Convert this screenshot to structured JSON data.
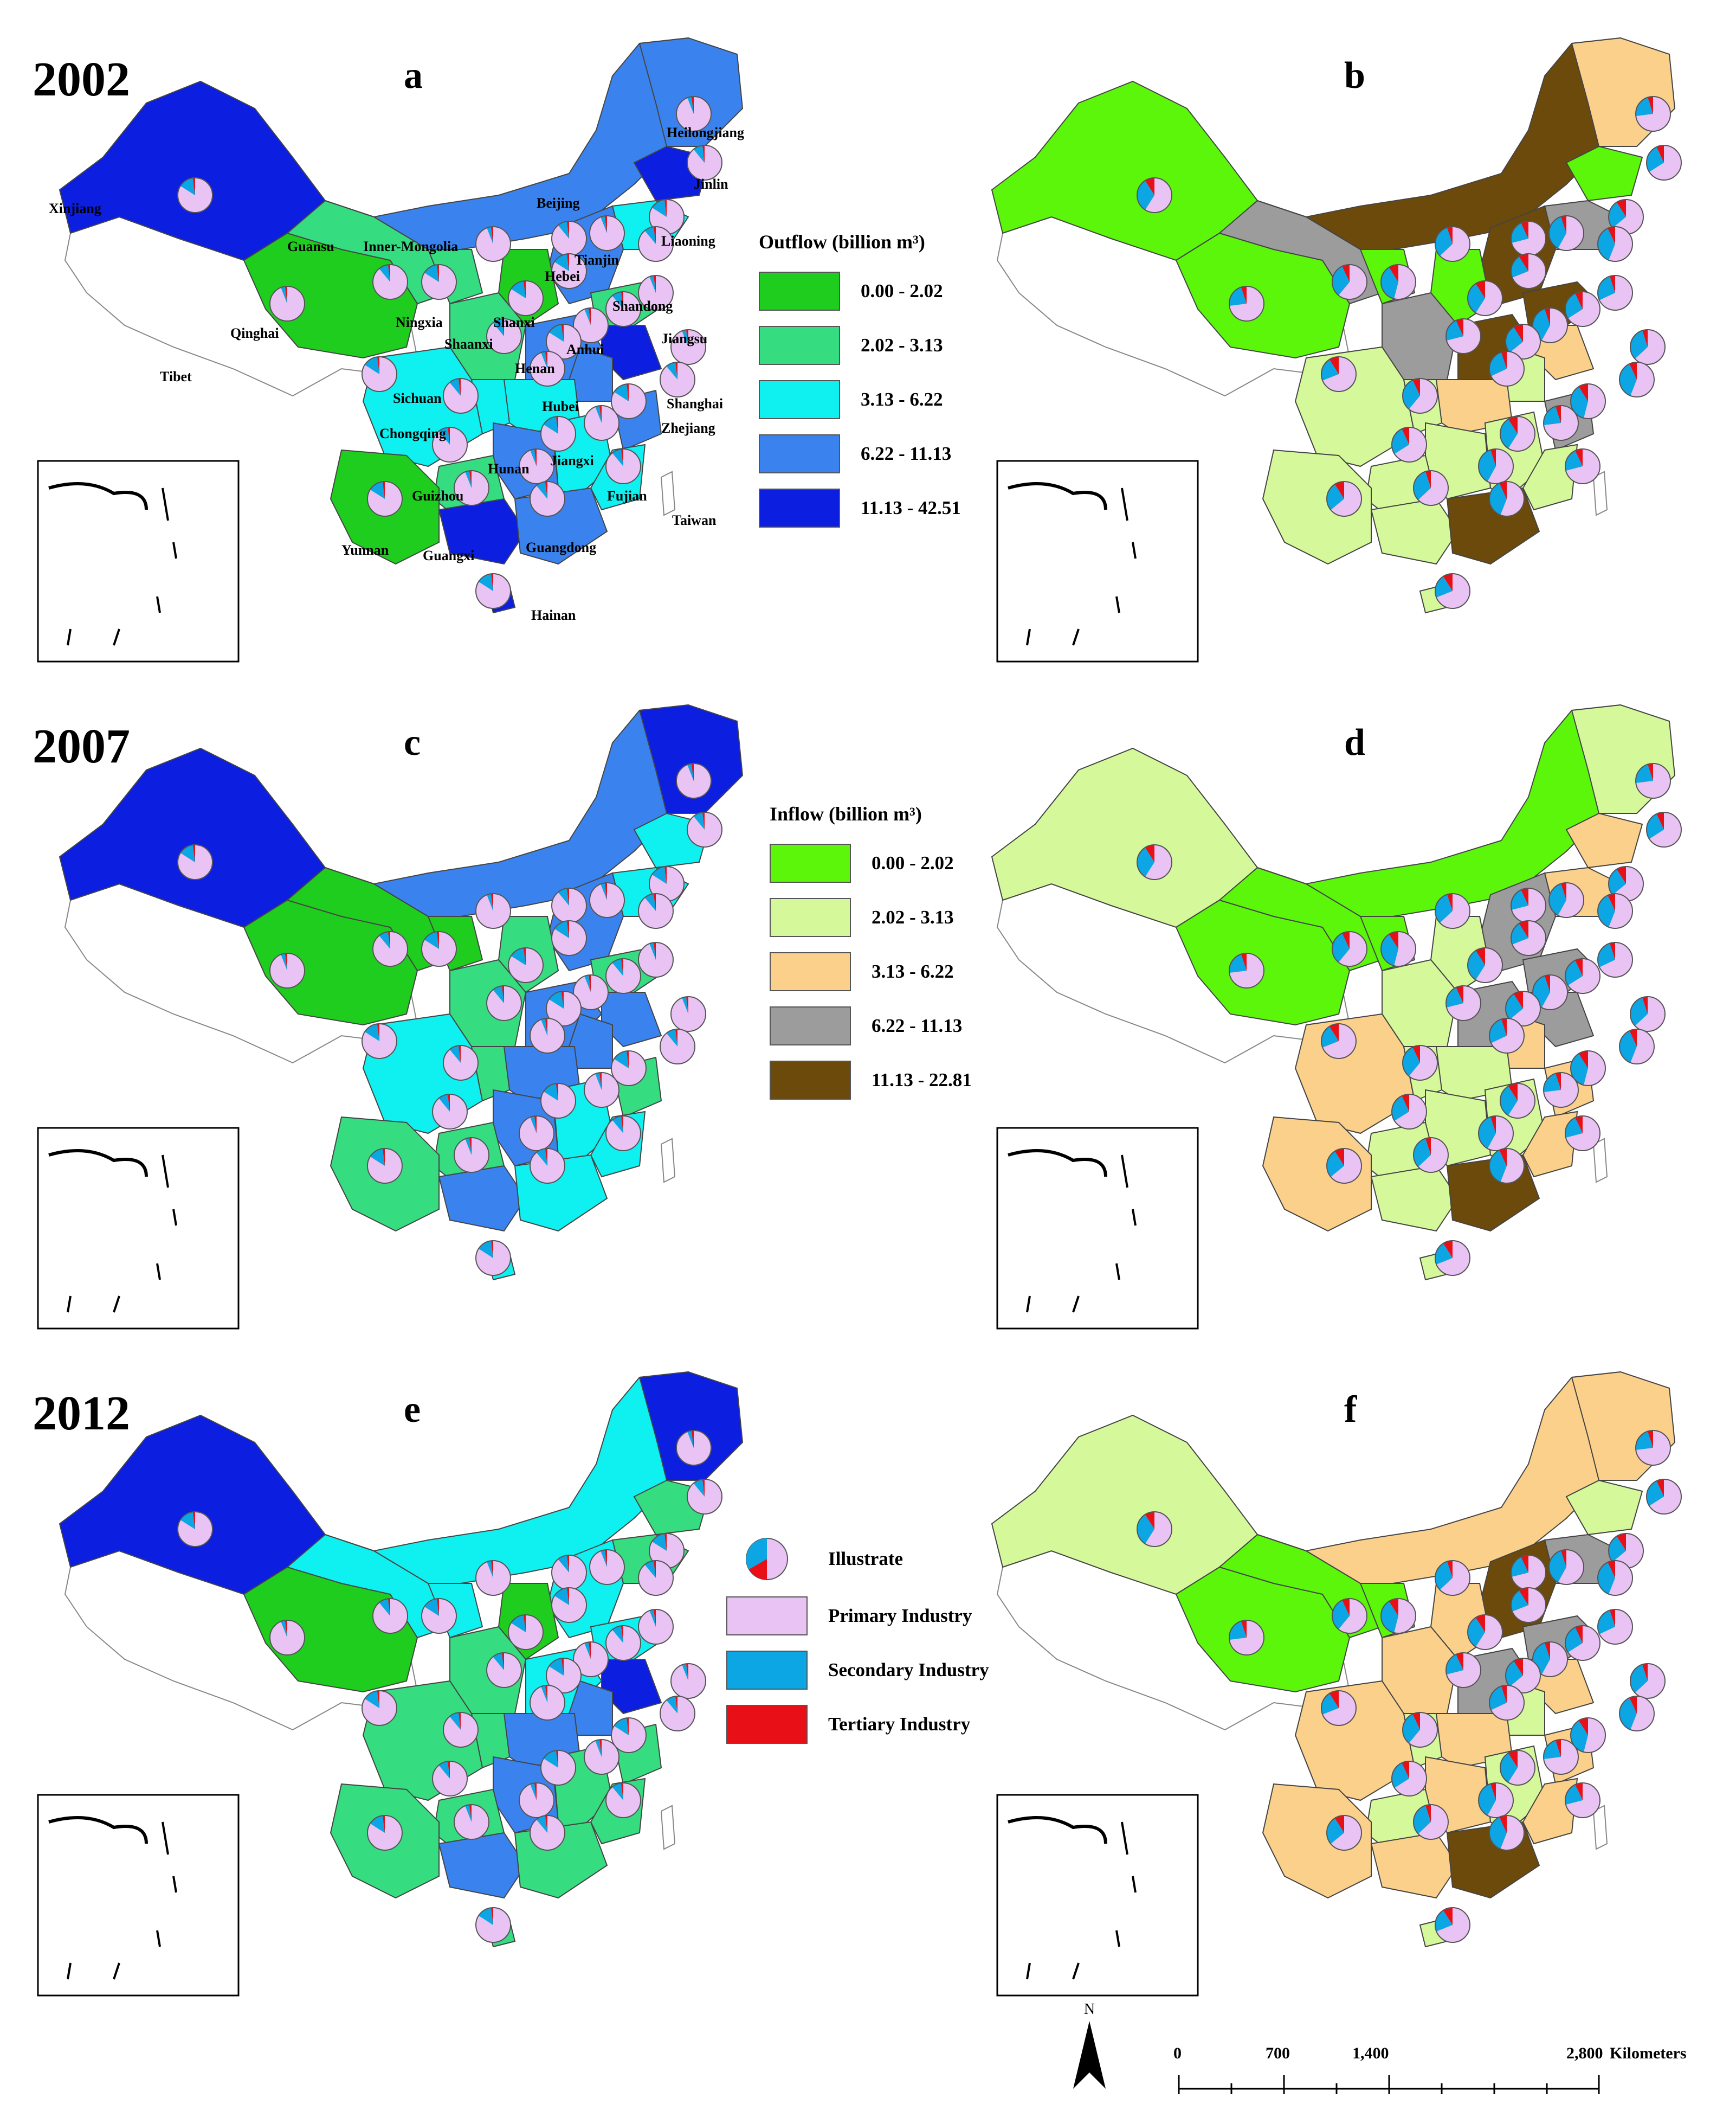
{
  "years": [
    "2002",
    "2007",
    "2012"
  ],
  "panels": [
    {
      "letter": "a",
      "year": "2002",
      "measure": "outflow"
    },
    {
      "letter": "b",
      "year": "2002",
      "measure": "inflow"
    },
    {
      "letter": "c",
      "year": "2007",
      "measure": "outflow"
    },
    {
      "letter": "d",
      "year": "2007",
      "measure": "inflow"
    },
    {
      "letter": "e",
      "year": "2012",
      "measure": "outflow"
    },
    {
      "letter": "f",
      "year": "2012",
      "measure": "inflow"
    }
  ],
  "outflow_legend": {
    "title": "Outflow (billion m³)",
    "classes": [
      {
        "label": "0.00 - 2.02",
        "color": "#1fcd1f"
      },
      {
        "label": "2.02 - 3.13",
        "color": "#36dc80"
      },
      {
        "label": "3.13 - 6.22",
        "color": "#0ff0f0"
      },
      {
        "label": "6.22 - 11.13",
        "color": "#3a83ee"
      },
      {
        "label": "11.13 - 42.51",
        "color": "#0c1ee0"
      }
    ]
  },
  "inflow_legend": {
    "title": "Inflow (billion m³)",
    "classes": [
      {
        "label": "0.00 - 2.02",
        "color": "#5cf60b"
      },
      {
        "label": "2.02 - 3.13",
        "color": "#d5f99a"
      },
      {
        "label": "3.13 - 6.22",
        "color": "#fbd08a"
      },
      {
        "label": "6.22 - 11.13",
        "color": "#9c9c9c"
      },
      {
        "label": "11.13 - 22.81",
        "color": "#6b4a0b"
      }
    ]
  },
  "pie_legend": {
    "title": "Illustrate",
    "items": [
      {
        "label": "Primary Industry",
        "color": "#eac3f5"
      },
      {
        "label": "Secondary Industry",
        "color": "#0ba6e3"
      },
      {
        "label": "Tertiary Industry",
        "color": "#e80f17"
      }
    ]
  },
  "province_labels": [
    "Heilongjiang",
    "Jinlin",
    "Xinjiang",
    "Beijing",
    "Liaoning",
    "Guansu",
    "Inner-Mongolia",
    "Tianjin",
    "Hebei",
    "Shandong",
    "Ningxia",
    "Shanxi",
    "Qinghai",
    "Jiangsu",
    "Shaanxi",
    "Anhui",
    "Tibet",
    "Henan",
    "Shanghai",
    "Sichuan",
    "Hubei",
    "Chongqing",
    "Zhejiang",
    "Hunan",
    "Jiangxi",
    "Guizhou",
    "Fujian",
    "Taiwan",
    "Yunnan",
    "Guangxi",
    "Guangdong",
    "Hainan"
  ],
  "north_label": "N",
  "scale": {
    "ticks": [
      "0",
      "700",
      "1,400",
      "2,800"
    ],
    "unit": "Kilometers"
  }
}
